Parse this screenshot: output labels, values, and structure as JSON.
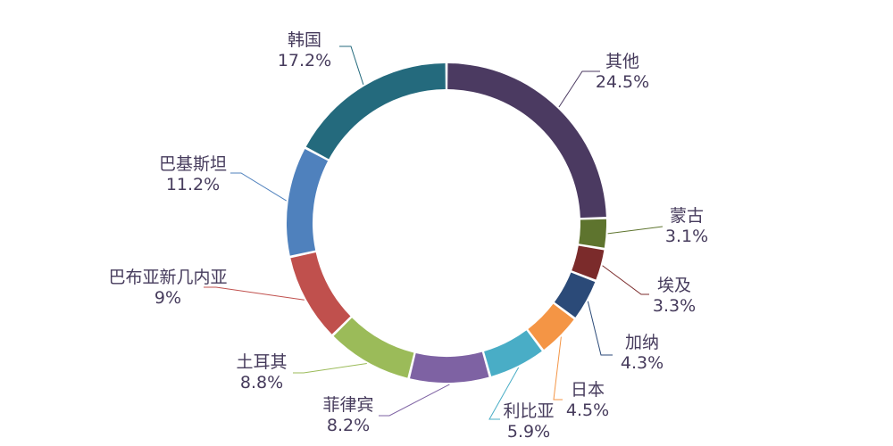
{
  "chart_data": {
    "type": "pie",
    "variant": "donut",
    "title": "",
    "legend": "none",
    "slices": [
      {
        "label": "其他",
        "value": 24.5,
        "value_label": "24.5%",
        "color": "#4b3a61"
      },
      {
        "label": "蒙古",
        "value": 3.1,
        "value_label": "3.1%",
        "color": "#5e742e"
      },
      {
        "label": "埃及",
        "value": 3.3,
        "value_label": "3.3%",
        "color": "#7b2b2b"
      },
      {
        "label": "加纳",
        "value": 4.3,
        "value_label": "4.3%",
        "color": "#2b4a78"
      },
      {
        "label": "日本",
        "value": 4.5,
        "value_label": "4.5%",
        "color": "#f49545"
      },
      {
        "label": "利比亚",
        "value": 5.9,
        "value_label": "5.9%",
        "color": "#49adc6"
      },
      {
        "label": "菲律宾",
        "value": 8.2,
        "value_label": "8.2%",
        "color": "#7e62a3"
      },
      {
        "label": "土耳其",
        "value": 8.8,
        "value_label": "8.8%",
        "color": "#9bbb59"
      },
      {
        "label": "巴布亚新几内亚",
        "value": 9,
        "value_label": "9%",
        "color": "#c0504d"
      },
      {
        "label": "巴基斯坦",
        "value": 11.2,
        "value_label": "11.2%",
        "color": "#4f81bd"
      },
      {
        "label": "韩国",
        "value": 17.2,
        "value_label": "17.2%",
        "color": "#246a7d"
      }
    ]
  }
}
